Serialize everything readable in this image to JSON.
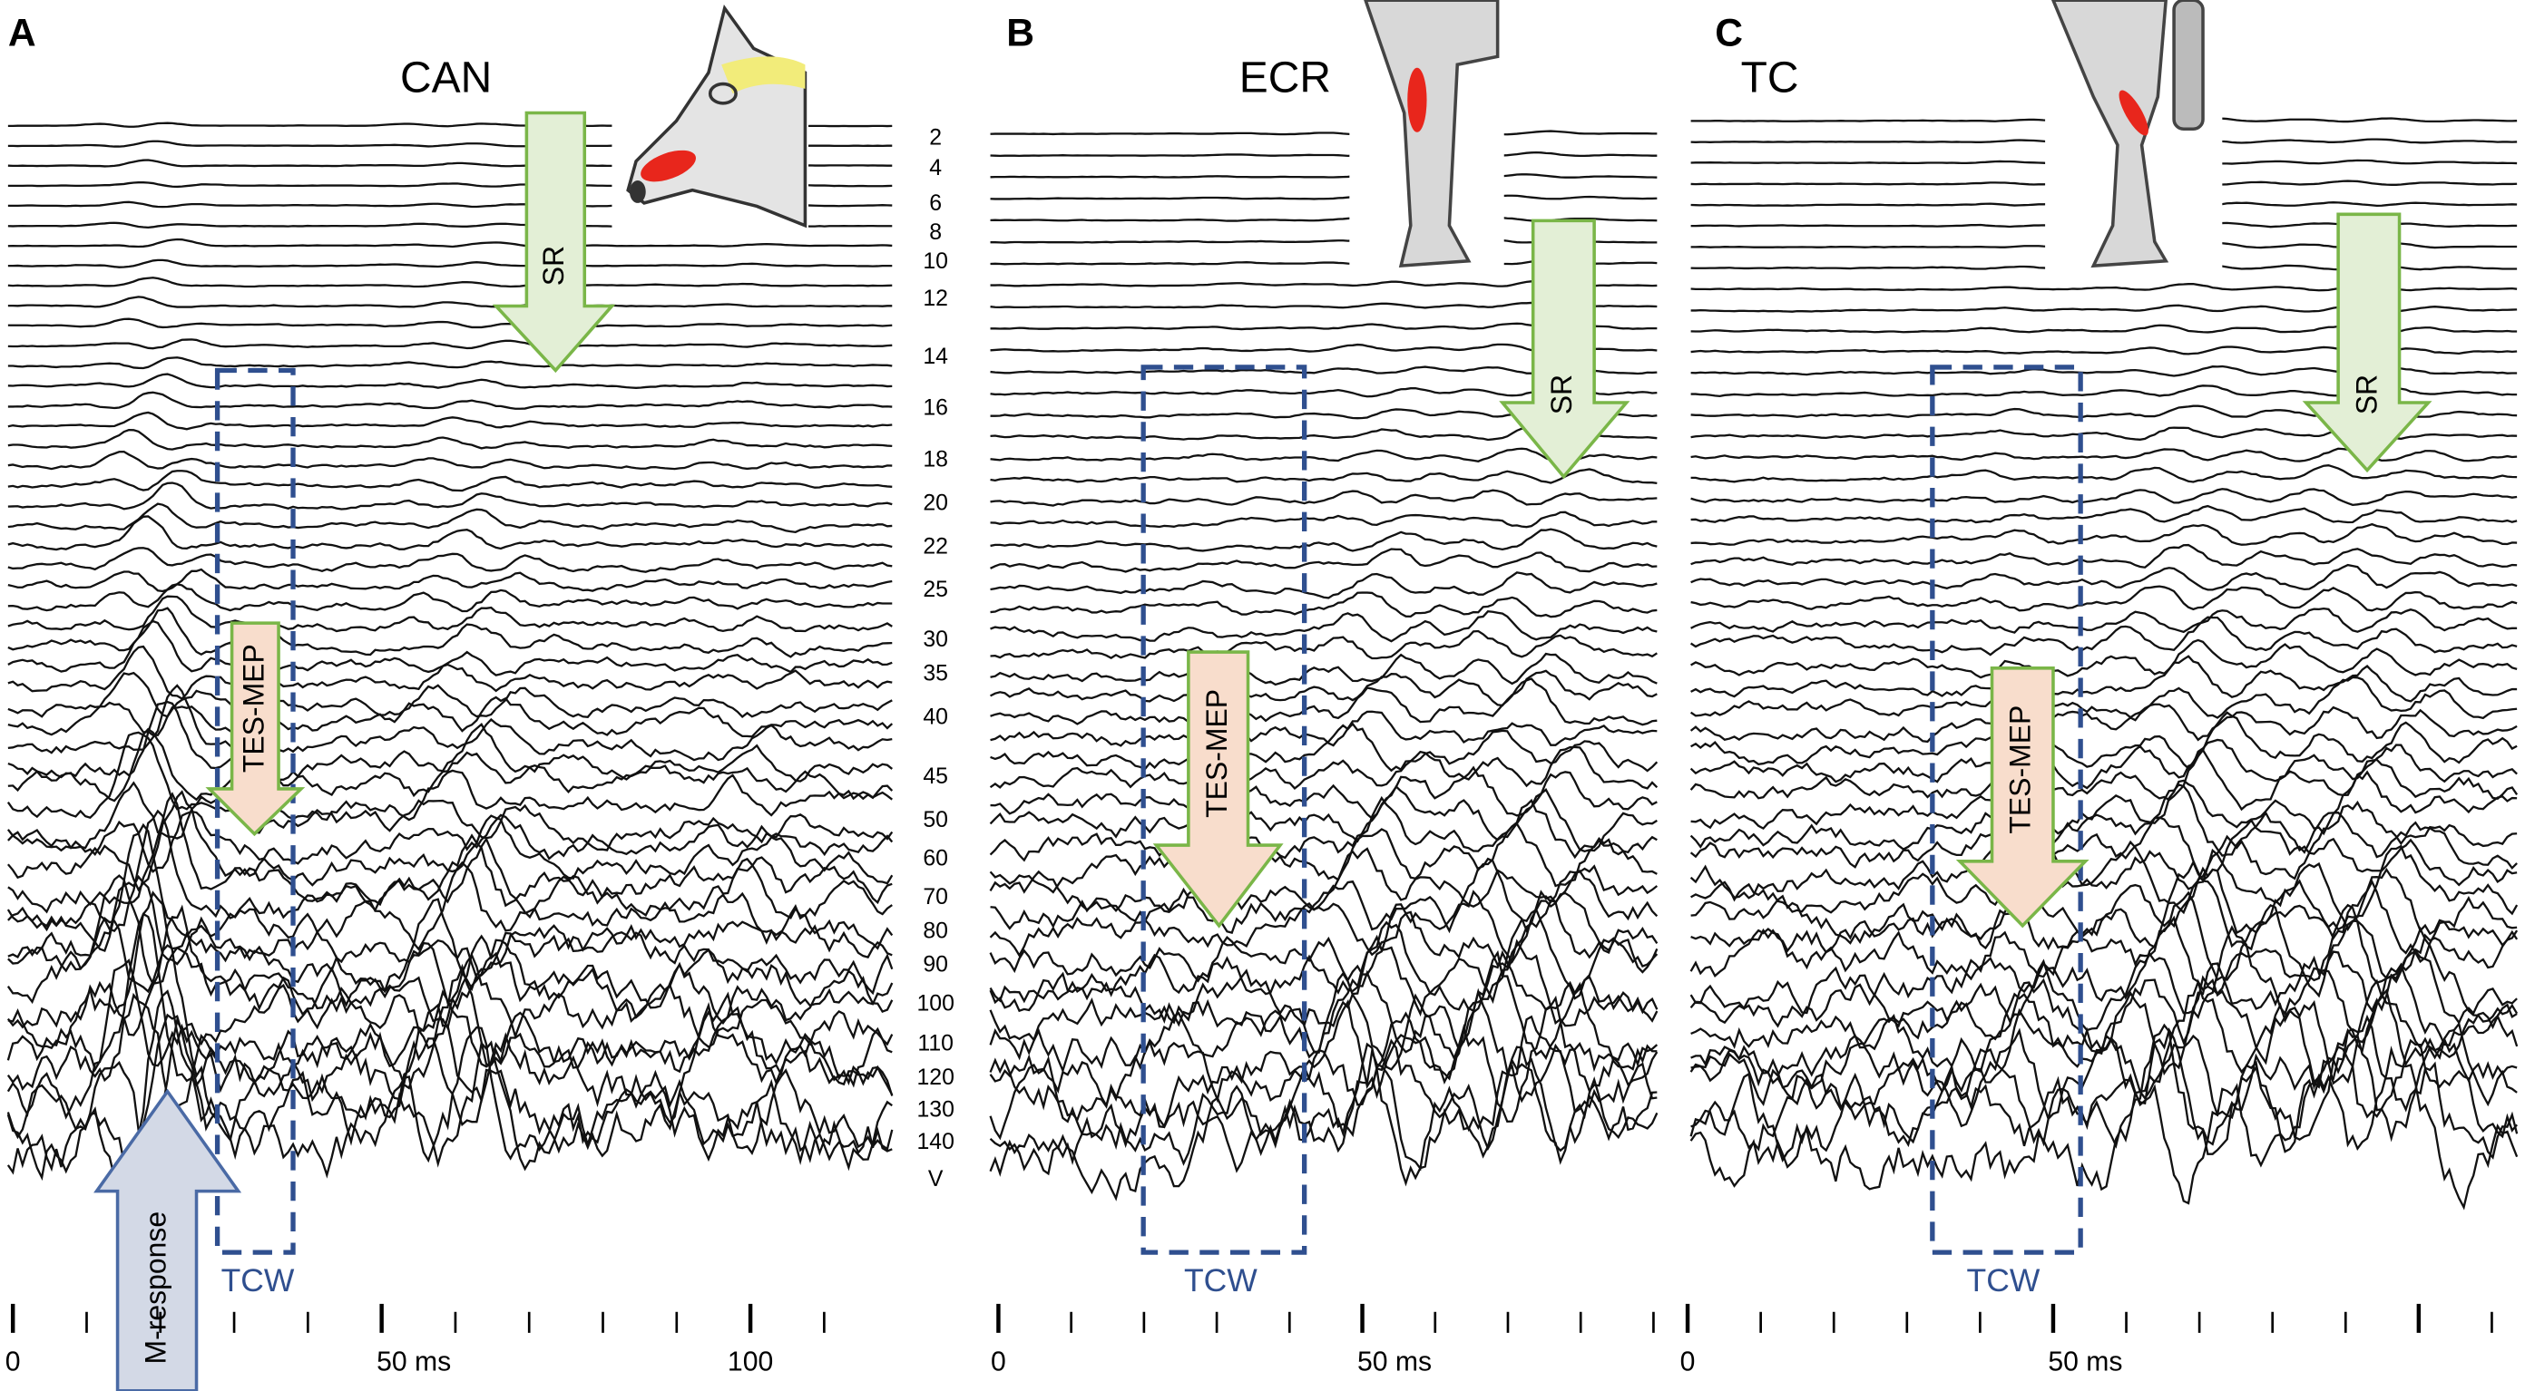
{
  "panels": [
    {
      "letter": "A",
      "muscle": "CAN",
      "intensities": [
        "2",
        "4",
        "6",
        "8",
        "10",
        "12",
        "14",
        "16",
        "18",
        "20",
        "22",
        "25",
        "30",
        "35",
        "40",
        "45",
        "50",
        "60",
        "70",
        "80",
        "90",
        "100",
        "110",
        "120",
        "130",
        "140",
        "V"
      ],
      "sr": "SR",
      "mep": "TES-MEP",
      "m_response": "M-response",
      "window": "TCW",
      "axis_labels": [
        "0",
        "50 ms",
        "100"
      ]
    },
    {
      "letter": "B",
      "muscle": "ECR",
      "sr": "SR",
      "mep": "TES-MEP",
      "window": "TCW",
      "axis_labels": [
        "0",
        "50 ms"
      ]
    },
    {
      "letter": "C",
      "muscle": "TC",
      "sr": "SR",
      "mep": "TES-MEP",
      "window": "TCW",
      "axis_labels": [
        "0",
        "50 ms"
      ]
    }
  ]
}
